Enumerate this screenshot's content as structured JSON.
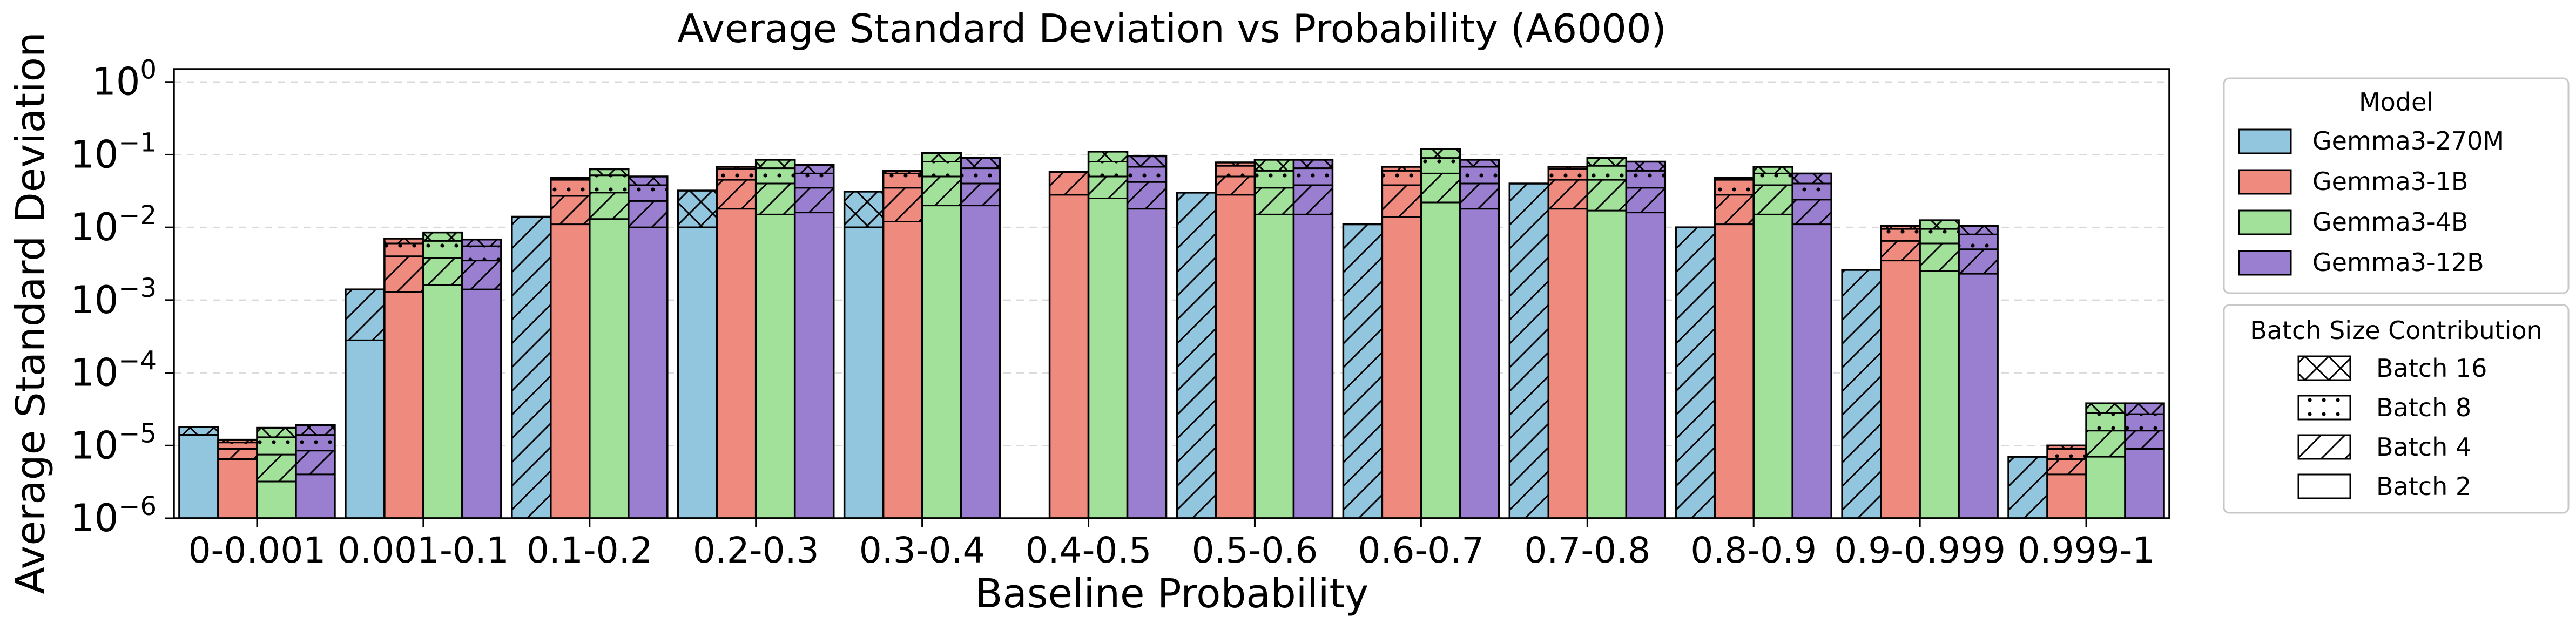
{
  "chart_data": {
    "type": "bar",
    "title": "Average Standard Deviation vs Probability (A6000)",
    "xlabel": "Baseline Probability",
    "ylabel": "Average Standard Deviation",
    "yscale": "log",
    "ylim": [
      1e-06,
      1.5
    ],
    "grid": "y",
    "categories": [
      "0-0.001",
      "0.001-0.1",
      "0.1-0.2",
      "0.2-0.3",
      "0.3-0.4",
      "0.4-0.5",
      "0.5-0.6",
      "0.6-0.7",
      "0.7-0.8",
      "0.8-0.9",
      "0.9-0.999",
      "0.999-1"
    ],
    "y_ticks": [
      {
        "value": 1e-06,
        "base": "10",
        "exp": "−6"
      },
      {
        "value": 1e-05,
        "base": "10",
        "exp": "−5"
      },
      {
        "value": 0.0001,
        "base": "10",
        "exp": "−4"
      },
      {
        "value": 0.001,
        "base": "10",
        "exp": "−3"
      },
      {
        "value": 0.01,
        "base": "10",
        "exp": "−2"
      },
      {
        "value": 0.1,
        "base": "10",
        "exp": "−1"
      },
      {
        "value": 1,
        "base": "10",
        "exp": "0"
      }
    ],
    "series": [
      {
        "name": "Gemma3-270M",
        "color": "#92c5de",
        "batch2": [
          1.4e-05,
          0.00028,
          1e-06,
          0.01,
          0.01,
          null,
          1e-06,
          1e-06,
          1e-06,
          1e-06,
          1e-06,
          1e-06
        ],
        "batch4": [
          1.4e-05,
          0.0014,
          0.014,
          0.01,
          0.01,
          null,
          0.03,
          0.011,
          0.04,
          0.01,
          0.0026,
          7e-06
        ],
        "batch8": [
          1.4e-05,
          0.0014,
          0.014,
          0.01,
          0.01,
          null,
          0.03,
          0.011,
          0.04,
          0.01,
          0.0026,
          7e-06
        ],
        "batch16": [
          1.8e-05,
          0.0014,
          0.014,
          0.032,
          0.031,
          null,
          0.03,
          0.011,
          0.04,
          0.01,
          0.0026,
          7e-06
        ]
      },
      {
        "name": "Gemma3-1B",
        "color": "#ef8a7e",
        "batch2": [
          6.5e-06,
          0.0013,
          0.011,
          0.018,
          0.012,
          0.028,
          0.028,
          0.014,
          0.018,
          0.011,
          0.0035,
          4e-06
        ],
        "batch4": [
          9e-06,
          0.004,
          0.027,
          0.045,
          0.035,
          0.058,
          0.05,
          0.038,
          0.045,
          0.028,
          0.0065,
          6.5e-06
        ],
        "batch8": [
          1.1e-05,
          0.006,
          0.045,
          0.063,
          0.055,
          0.058,
          0.07,
          0.06,
          0.063,
          0.045,
          0.0095,
          9e-06
        ],
        "batch16": [
          1.2e-05,
          0.007,
          0.048,
          0.068,
          0.06,
          0.058,
          0.078,
          0.068,
          0.068,
          0.048,
          0.0105,
          1e-05
        ]
      },
      {
        "name": "Gemma3-4B",
        "color": "#a1e19a",
        "batch2": [
          3.2e-06,
          0.0016,
          0.013,
          0.015,
          0.02,
          0.025,
          0.015,
          0.022,
          0.017,
          0.015,
          0.0025,
          7e-06
        ],
        "batch4": [
          7.5e-06,
          0.0038,
          0.03,
          0.04,
          0.05,
          0.05,
          0.035,
          0.055,
          0.045,
          0.038,
          0.006,
          1.6e-05
        ],
        "batch8": [
          1.3e-05,
          0.0065,
          0.052,
          0.065,
          0.08,
          0.08,
          0.06,
          0.09,
          0.07,
          0.055,
          0.0095,
          2.8e-05
        ],
        "batch16": [
          1.75e-05,
          0.0085,
          0.063,
          0.085,
          0.105,
          0.11,
          0.085,
          0.12,
          0.09,
          0.068,
          0.0125,
          3.8e-05
        ]
      },
      {
        "name": "Gemma3-12B",
        "color": "#9a7fd1",
        "batch2": [
          4e-06,
          0.0014,
          0.01,
          0.016,
          0.02,
          0.018,
          0.015,
          0.018,
          0.016,
          0.011,
          0.0023,
          9e-06
        ],
        "batch4": [
          8.5e-06,
          0.0035,
          0.023,
          0.035,
          0.04,
          0.042,
          0.038,
          0.04,
          0.035,
          0.024,
          0.005,
          1.6e-05
        ],
        "batch8": [
          1.4e-05,
          0.0055,
          0.038,
          0.055,
          0.065,
          0.068,
          0.065,
          0.068,
          0.06,
          0.04,
          0.008,
          2.7e-05
        ],
        "batch16": [
          1.9e-05,
          0.0068,
          0.05,
          0.072,
          0.09,
          0.095,
          0.085,
          0.085,
          0.08,
          0.055,
          0.0105,
          3.8e-05
        ]
      }
    ],
    "legend": {
      "model_title": "Model",
      "batch_title": "Batch Size Contribution",
      "placement": "right",
      "batch_items": [
        {
          "label": "Batch 16",
          "hatch": "x"
        },
        {
          "label": "Batch 8",
          "hatch": "dots"
        },
        {
          "label": "Batch 4",
          "hatch": "diag"
        },
        {
          "label": "Batch 2",
          "hatch": "none"
        }
      ]
    }
  }
}
